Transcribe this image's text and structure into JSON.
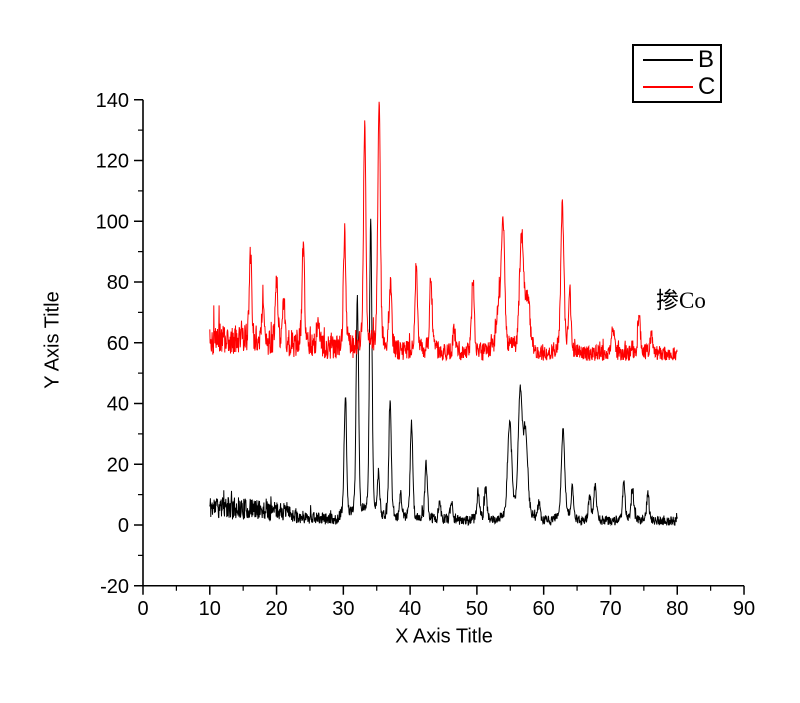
{
  "chart_data": {
    "type": "line",
    "title": "",
    "xlabel": "X Axis Title",
    "ylabel": "Y Axis Title",
    "xlim": [
      0,
      90
    ],
    "ylim": [
      -20,
      140
    ],
    "x_ticks": [
      0,
      10,
      20,
      30,
      40,
      50,
      60,
      70,
      80,
      90
    ],
    "y_ticks": [
      -20,
      0,
      20,
      40,
      60,
      80,
      100,
      120,
      140
    ],
    "x_minor_step": 5,
    "y_minor_step": 10,
    "grid": false,
    "legend_position": "top-right",
    "annotation": {
      "text": "掺Co",
      "x": 77,
      "y": 78
    },
    "series_note": "XRD-style noisy traces; baseline rows are [x, mean, noise_amplitude]; peaks are [x_center, peak_top_value, optional_width]",
    "series": [
      {
        "name": "B",
        "color": "#000000",
        "x_start": 10,
        "x_end": 80,
        "baseline": [
          [
            10,
            6,
            4
          ],
          [
            21,
            4.5,
            3
          ],
          [
            23,
            2.8,
            2.2
          ],
          [
            29,
            1.8,
            1.8
          ],
          [
            80,
            1.3,
            1.5
          ]
        ],
        "peaks": [
          [
            30.3,
            42
          ],
          [
            32.1,
            74
          ],
          [
            34.1,
            99
          ],
          [
            35.3,
            15
          ],
          [
            37.0,
            41
          ],
          [
            38.6,
            10
          ],
          [
            40.2,
            33.5
          ],
          [
            42.4,
            20
          ],
          [
            44.4,
            7
          ],
          [
            46.2,
            8
          ],
          [
            50.2,
            11
          ],
          [
            51.3,
            12
          ],
          [
            54.9,
            33,
            0.3
          ],
          [
            56.5,
            41.5,
            0.3
          ],
          [
            57.3,
            28,
            0.3
          ],
          [
            59.3,
            7
          ],
          [
            62.9,
            31,
            0.25
          ],
          [
            64.3,
            12
          ],
          [
            66.9,
            9
          ],
          [
            67.7,
            13
          ],
          [
            72.0,
            13.5
          ],
          [
            73.3,
            12
          ],
          [
            75.6,
            10
          ]
        ]
      },
      {
        "name": "C",
        "color": "#ff0000",
        "x_start": 10,
        "x_end": 80,
        "baseline": [
          [
            10,
            61,
            5
          ],
          [
            28,
            58.5,
            4
          ],
          [
            45,
            57,
            3
          ],
          [
            80,
            56.5,
            2.5
          ]
        ],
        "peaks": [
          [
            16.1,
            90
          ],
          [
            18.0,
            73
          ],
          [
            20.0,
            80
          ],
          [
            21.1,
            72
          ],
          [
            24.0,
            93
          ],
          [
            26.2,
            68
          ],
          [
            30.2,
            96
          ],
          [
            33.2,
            130
          ],
          [
            35.35,
            140
          ],
          [
            37.05,
            79
          ],
          [
            40.9,
            84
          ],
          [
            43.1,
            82.5
          ],
          [
            46.6,
            64
          ],
          [
            49.4,
            81
          ],
          [
            53.2,
            70,
            0.3
          ],
          [
            53.9,
            100,
            0.25
          ],
          [
            56.7,
            95,
            0.3
          ],
          [
            57.6,
            74,
            0.3
          ],
          [
            62.8,
            105,
            0.22
          ],
          [
            63.9,
            76
          ],
          [
            70.4,
            65
          ],
          [
            74.3,
            68
          ],
          [
            76.1,
            63
          ]
        ]
      }
    ]
  }
}
